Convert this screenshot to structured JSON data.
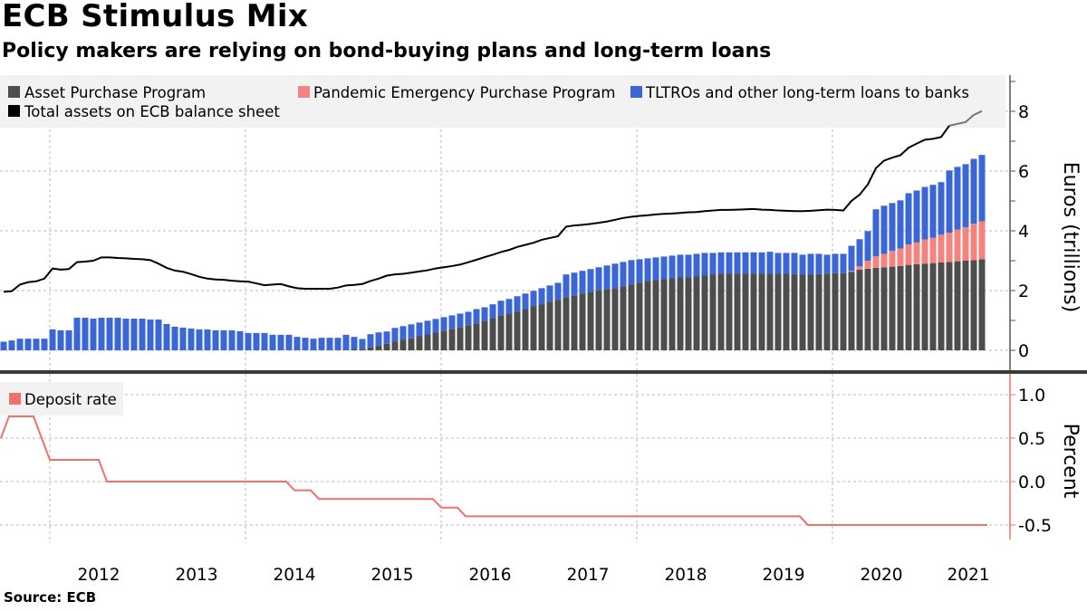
{
  "header": {
    "title": "ECB Stimulus Mix",
    "subtitle": "Policy makers are relying on bond-buying plans and long-term loans"
  },
  "footer": {
    "source": "Source:  ECB"
  },
  "colors": {
    "app": "#4d4d4d",
    "pepp": "#f4837f",
    "tltro": "#3a66d6",
    "total_assets": "#000000",
    "deposit_rate": "#f0706a",
    "legend_bg": "#f2f2f2"
  },
  "chart_data": [
    {
      "type": "bar",
      "stacked": true,
      "frequency": "monthly",
      "start_month": "2011-07",
      "end_month": "2021-07",
      "ylabel": "Euros (trillions)",
      "ylim": [
        0,
        9
      ],
      "yticks": [
        "0",
        "2",
        "4",
        "6",
        "8"
      ],
      "grid": true,
      "legend": "top",
      "legend_entries": [
        "Asset Purchase Program",
        "Pandemic Emergency Purchase Program",
        "TLTROs and other long-term loans to banks",
        "Total assets on ECB balance sheet"
      ],
      "series": [
        {
          "name": "Asset Purchase Program",
          "kind": "bar",
          "values": [
            0,
            0,
            0,
            0,
            0,
            0,
            0,
            0,
            0,
            0,
            0,
            0,
            0,
            0,
            0,
            0,
            0,
            0,
            0,
            0,
            0,
            0,
            0,
            0,
            0,
            0,
            0,
            0,
            0,
            0,
            0,
            0,
            0,
            0,
            0,
            0,
            0,
            0,
            0,
            0.01,
            0.01,
            0.02,
            0.02,
            0.03,
            0.05,
            0.1,
            0.15,
            0.22,
            0.3,
            0.35,
            0.4,
            0.47,
            0.53,
            0.59,
            0.66,
            0.72,
            0.78,
            0.84,
            0.9,
            0.99,
            1.08,
            1.17,
            1.23,
            1.29,
            1.38,
            1.47,
            1.53,
            1.62,
            1.68,
            1.78,
            1.84,
            1.9,
            1.96,
            2.02,
            2.05,
            2.08,
            2.14,
            2.2,
            2.26,
            2.32,
            2.35,
            2.38,
            2.41,
            2.44,
            2.44,
            2.47,
            2.5,
            2.53,
            2.56,
            2.56,
            2.56,
            2.56,
            2.57,
            2.56,
            2.56,
            2.56,
            2.56,
            2.55,
            2.53,
            2.53,
            2.55,
            2.57,
            2.58,
            2.58,
            2.63,
            2.7,
            2.73,
            2.76,
            2.78,
            2.8,
            2.82,
            2.86,
            2.88,
            2.9,
            2.92,
            2.94,
            2.96,
            2.98,
            3.0,
            3.02,
            3.05
          ]
        },
        {
          "name": "Pandemic Emergency Purchase Program",
          "kind": "bar",
          "values": [
            0,
            0,
            0,
            0,
            0,
            0,
            0,
            0,
            0,
            0,
            0,
            0,
            0,
            0,
            0,
            0,
            0,
            0,
            0,
            0,
            0,
            0,
            0,
            0,
            0,
            0,
            0,
            0,
            0,
            0,
            0,
            0,
            0,
            0,
            0,
            0,
            0,
            0,
            0,
            0,
            0,
            0,
            0,
            0,
            0,
            0,
            0,
            0,
            0,
            0,
            0,
            0,
            0,
            0,
            0,
            0,
            0,
            0,
            0,
            0,
            0,
            0,
            0,
            0,
            0,
            0,
            0,
            0,
            0,
            0,
            0,
            0,
            0,
            0,
            0,
            0,
            0,
            0,
            0,
            0,
            0,
            0,
            0,
            0,
            0,
            0,
            0,
            0,
            0,
            0,
            0,
            0,
            0,
            0,
            0,
            0,
            0,
            0,
            0,
            0,
            0,
            0,
            0,
            0,
            0.03,
            0.11,
            0.27,
            0.39,
            0.45,
            0.53,
            0.59,
            0.68,
            0.73,
            0.81,
            0.85,
            0.93,
            0.98,
            1.06,
            1.12,
            1.22,
            1.27
          ]
        },
        {
          "name": "TLTROs and other long-term loans to banks",
          "kind": "bar",
          "values": [
            0.29,
            0.33,
            0.39,
            0.39,
            0.39,
            0.39,
            0.7,
            0.67,
            0.67,
            1.09,
            1.09,
            1.06,
            1.09,
            1.09,
            1.09,
            1.06,
            1.06,
            1.06,
            1.03,
            1.03,
            0.88,
            0.79,
            0.76,
            0.73,
            0.7,
            0.7,
            0.67,
            0.67,
            0.67,
            0.64,
            0.58,
            0.58,
            0.58,
            0.52,
            0.52,
            0.52,
            0.45,
            0.42,
            0.39,
            0.41,
            0.41,
            0.4,
            0.5,
            0.42,
            0.33,
            0.44,
            0.45,
            0.41,
            0.45,
            0.46,
            0.47,
            0.46,
            0.46,
            0.46,
            0.45,
            0.45,
            0.45,
            0.45,
            0.48,
            0.45,
            0.46,
            0.49,
            0.49,
            0.52,
            0.52,
            0.52,
            0.55,
            0.55,
            0.58,
            0.76,
            0.76,
            0.76,
            0.76,
            0.76,
            0.79,
            0.82,
            0.82,
            0.82,
            0.79,
            0.76,
            0.76,
            0.76,
            0.76,
            0.76,
            0.76,
            0.76,
            0.76,
            0.73,
            0.72,
            0.72,
            0.72,
            0.72,
            0.71,
            0.72,
            0.74,
            0.7,
            0.7,
            0.71,
            0.67,
            0.7,
            0.68,
            0.63,
            0.65,
            0.65,
            0.84,
            0.91,
            0.99,
            1.57,
            1.61,
            1.6,
            1.61,
            1.72,
            1.74,
            1.76,
            1.77,
            1.76,
            2.08,
            2.1,
            2.11,
            2.17,
            2.22
          ]
        },
        {
          "name": "Total assets on ECB balance sheet",
          "kind": "line",
          "values": [
            1.96,
            1.98,
            2.2,
            2.28,
            2.31,
            2.4,
            2.74,
            2.7,
            2.72,
            2.95,
            2.97,
            3.0,
            3.11,
            3.11,
            3.09,
            3.08,
            3.06,
            3.05,
            3.02,
            2.9,
            2.76,
            2.67,
            2.63,
            2.55,
            2.46,
            2.4,
            2.37,
            2.36,
            2.33,
            2.31,
            2.3,
            2.24,
            2.18,
            2.2,
            2.22,
            2.14,
            2.08,
            2.06,
            2.06,
            2.06,
            2.06,
            2.1,
            2.17,
            2.19,
            2.22,
            2.32,
            2.4,
            2.5,
            2.54,
            2.56,
            2.6,
            2.64,
            2.68,
            2.74,
            2.78,
            2.82,
            2.87,
            2.95,
            3.03,
            3.12,
            3.2,
            3.29,
            3.36,
            3.46,
            3.53,
            3.6,
            3.7,
            3.76,
            3.82,
            4.14,
            4.18,
            4.2,
            4.23,
            4.27,
            4.31,
            4.37,
            4.43,
            4.47,
            4.5,
            4.52,
            4.55,
            4.57,
            4.58,
            4.6,
            4.62,
            4.63,
            4.66,
            4.68,
            4.7,
            4.7,
            4.71,
            4.72,
            4.73,
            4.71,
            4.7,
            4.68,
            4.67,
            4.66,
            4.66,
            4.67,
            4.69,
            4.71,
            4.7,
            4.68,
            5.0,
            5.21,
            5.55,
            6.1,
            6.35,
            6.45,
            6.53,
            6.78,
            6.92,
            7.05,
            7.08,
            7.14,
            7.52,
            7.58,
            7.64,
            7.88,
            8.01
          ]
        }
      ]
    },
    {
      "type": "line",
      "step": true,
      "frequency": "monthly",
      "start_month": "2011-06",
      "end_month": "2021-07",
      "ylabel": "Percent",
      "ylim": [
        -0.75,
        1.2
      ],
      "yticks": [
        "1.0",
        "0.5",
        "0.0",
        "-0.5"
      ],
      "grid": true,
      "legend": "top-left",
      "series": [
        {
          "name": "Deposit rate",
          "changes": [
            {
              "month": "2011-06",
              "value": 0.5
            },
            {
              "month": "2011-07",
              "value": 0.75
            },
            {
              "month": "2011-11",
              "value": 0.5
            },
            {
              "month": "2011-12",
              "value": 0.25
            },
            {
              "month": "2012-07",
              "value": 0.0
            },
            {
              "month": "2014-06",
              "value": -0.1
            },
            {
              "month": "2014-09",
              "value": -0.2
            },
            {
              "month": "2015-12",
              "value": -0.3
            },
            {
              "month": "2016-03",
              "value": -0.4
            },
            {
              "month": "2019-09",
              "value": -0.5
            }
          ]
        }
      ]
    }
  ],
  "xaxis": {
    "tick_labels": [
      "2012",
      "2013",
      "2014",
      "2015",
      "2016",
      "2017",
      "2018",
      "2019",
      "2020",
      "2021"
    ]
  }
}
